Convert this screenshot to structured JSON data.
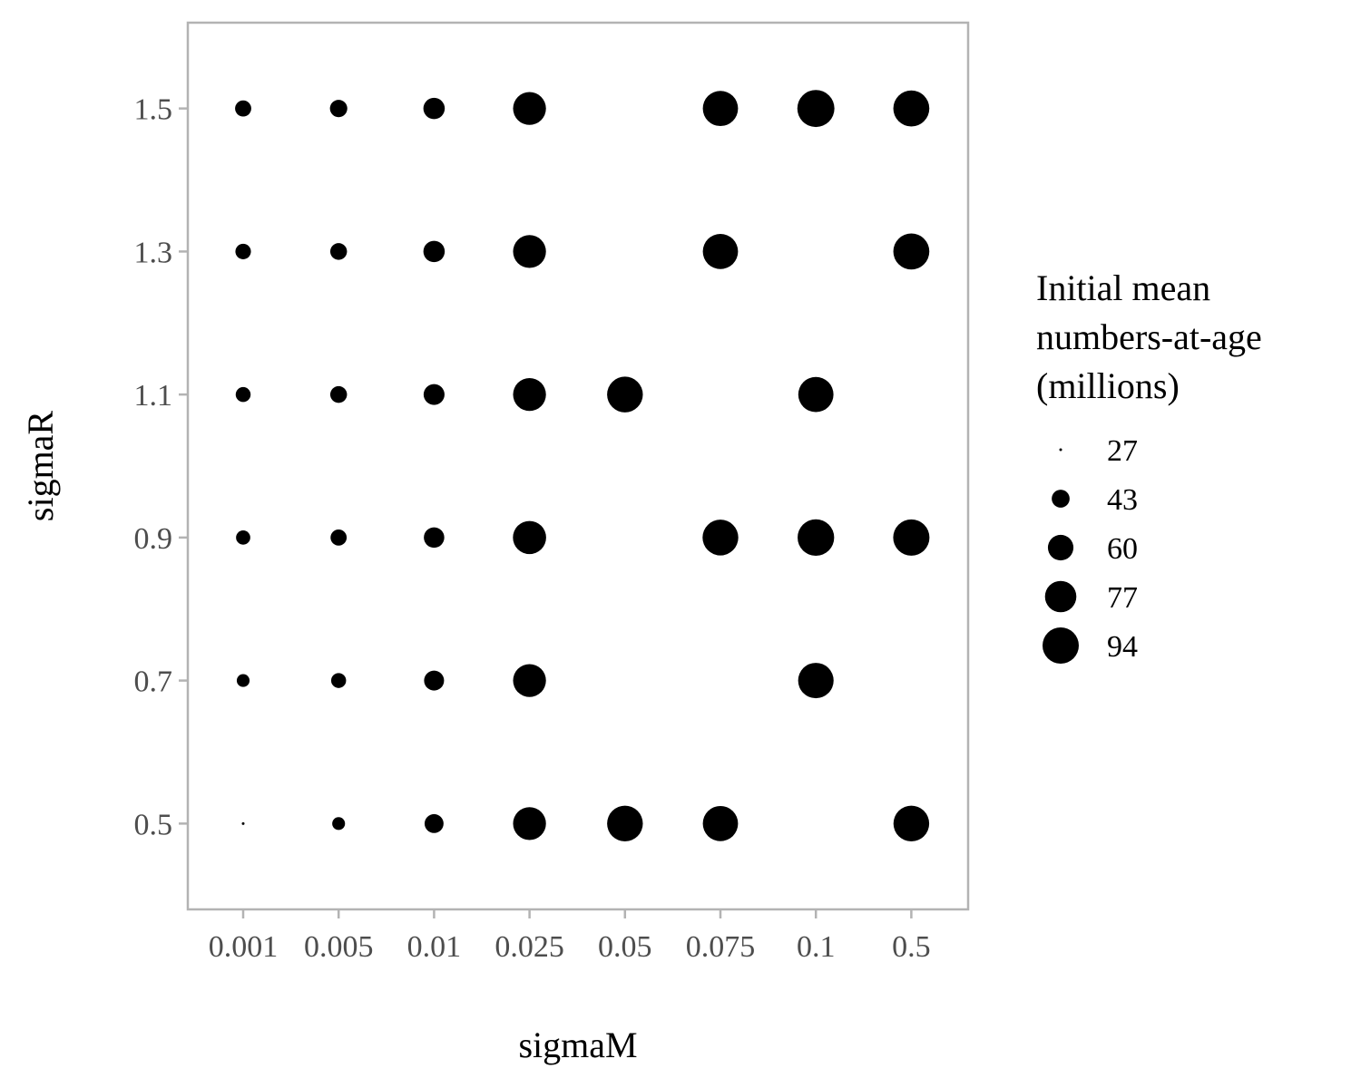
{
  "chart_data": {
    "type": "scatter",
    "xlabel": "sigmaM",
    "ylabel": "sigmaR",
    "x_categories": [
      "0.001",
      "0.005",
      "0.01",
      "0.025",
      "0.05",
      "0.075",
      "0.1",
      "0.5"
    ],
    "y_ticks": [
      "0.5",
      "0.7",
      "0.9",
      "1.1",
      "1.3",
      "1.5"
    ],
    "ylim": [
      0.38,
      1.62
    ],
    "size_legend": {
      "title_lines": [
        "Initial mean",
        "numbers-at-age",
        "(millions)"
      ],
      "values": [
        27,
        43,
        60,
        77,
        94
      ],
      "position": "right"
    },
    "points": [
      {
        "x": "0.001",
        "y": 1.5,
        "size": 40
      },
      {
        "x": "0.005",
        "y": 1.5,
        "size": 42
      },
      {
        "x": "0.01",
        "y": 1.5,
        "size": 50
      },
      {
        "x": "0.025",
        "y": 1.5,
        "size": 82
      },
      {
        "x": "0.075",
        "y": 1.5,
        "size": 90
      },
      {
        "x": "0.1",
        "y": 1.5,
        "size": 97
      },
      {
        "x": "0.5",
        "y": 1.5,
        "size": 93
      },
      {
        "x": "0.001",
        "y": 1.3,
        "size": 39
      },
      {
        "x": "0.005",
        "y": 1.3,
        "size": 41
      },
      {
        "x": "0.01",
        "y": 1.3,
        "size": 50
      },
      {
        "x": "0.025",
        "y": 1.3,
        "size": 82
      },
      {
        "x": "0.075",
        "y": 1.3,
        "size": 90
      },
      {
        "x": "0.5",
        "y": 1.3,
        "size": 93
      },
      {
        "x": "0.001",
        "y": 1.1,
        "size": 38
      },
      {
        "x": "0.005",
        "y": 1.1,
        "size": 41
      },
      {
        "x": "0.01",
        "y": 1.1,
        "size": 49
      },
      {
        "x": "0.025",
        "y": 1.1,
        "size": 82
      },
      {
        "x": "0.05",
        "y": 1.1,
        "size": 92
      },
      {
        "x": "0.1",
        "y": 1.1,
        "size": 90
      },
      {
        "x": "0.001",
        "y": 0.9,
        "size": 37
      },
      {
        "x": "0.005",
        "y": 0.9,
        "size": 40
      },
      {
        "x": "0.01",
        "y": 0.9,
        "size": 48
      },
      {
        "x": "0.025",
        "y": 0.9,
        "size": 83
      },
      {
        "x": "0.075",
        "y": 0.9,
        "size": 92
      },
      {
        "x": "0.1",
        "y": 0.9,
        "size": 95
      },
      {
        "x": "0.5",
        "y": 0.9,
        "size": 94
      },
      {
        "x": "0.001",
        "y": 0.7,
        "size": 35
      },
      {
        "x": "0.005",
        "y": 0.7,
        "size": 38
      },
      {
        "x": "0.01",
        "y": 0.7,
        "size": 47
      },
      {
        "x": "0.025",
        "y": 0.7,
        "size": 82
      },
      {
        "x": "0.1",
        "y": 0.7,
        "size": 91
      },
      {
        "x": "0.001",
        "y": 0.5,
        "size": 27
      },
      {
        "x": "0.005",
        "y": 0.5,
        "size": 35
      },
      {
        "x": "0.01",
        "y": 0.5,
        "size": 45
      },
      {
        "x": "0.025",
        "y": 0.5,
        "size": 82
      },
      {
        "x": "0.05",
        "y": 0.5,
        "size": 92
      },
      {
        "x": "0.075",
        "y": 0.5,
        "size": 90
      },
      {
        "x": "0.5",
        "y": 0.5,
        "size": 92
      }
    ],
    "panel_border_color": "#b3b3b3",
    "point_color": "#000000"
  }
}
